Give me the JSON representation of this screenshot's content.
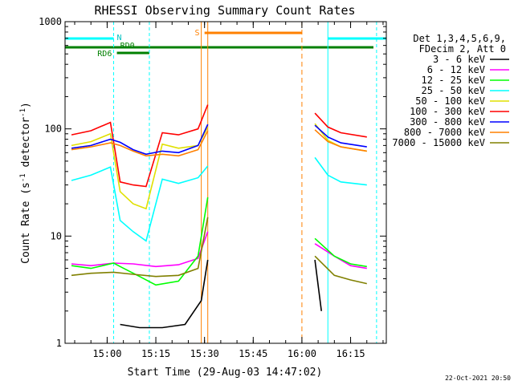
{
  "chart_data": {
    "type": "line",
    "title": "RHESSI Observing Summary Count Rates",
    "xlabel": "Start Time (29-Aug-03 14:47:02)",
    "ylabel": "Count Rate (s",
    "ylabel_sup": "-1",
    "ylabel_mid": " detector",
    "ylabel_end": ")",
    "yscale": "log",
    "ylim": [
      1,
      1000
    ],
    "xlim_minutes": [
      14.78,
      16.43
    ],
    "x_ticks": [
      "15:00",
      "15:15",
      "15:30",
      "15:45",
      "16:00",
      "16:15"
    ],
    "y_ticks": [
      "1",
      "10",
      "100",
      "1000"
    ],
    "legend_header": [
      "Det 1,3,4,5,6,9,",
      "FDecim 2, Att 0"
    ],
    "series": [
      {
        "name": "3 - 6 keV",
        "color": "#000000",
        "x": [
          "15:04",
          "15:10",
          "15:17",
          "15:24",
          "15:29",
          "15:31",
          "16:04",
          "16:06"
        ],
        "y": [
          1.5,
          1.4,
          1.4,
          1.5,
          2.5,
          6.0,
          6.0,
          2.0
        ]
      },
      {
        "name": "6 - 12 keV",
        "color": "#ff00ff",
        "x": [
          "14:49",
          "14:55",
          "15:02",
          "15:08",
          "15:15",
          "15:22",
          "15:28",
          "15:31",
          "16:04",
          "16:10",
          "16:15",
          "16:20"
        ],
        "y": [
          5.5,
          5.3,
          5.6,
          5.5,
          5.2,
          5.4,
          6.2,
          11.0,
          8.5,
          6.5,
          5.3,
          5.0
        ]
      },
      {
        "name": "12 - 25 keV",
        "color": "#00ff00",
        "x": [
          "14:49",
          "14:55",
          "15:02",
          "15:04",
          "15:10",
          "15:15",
          "15:22",
          "15:28",
          "15:31",
          "16:04",
          "16:10",
          "16:15",
          "16:20"
        ],
        "y": [
          5.3,
          5.0,
          5.6,
          5.2,
          4.2,
          3.5,
          3.8,
          6.5,
          23.0,
          9.5,
          6.5,
          5.5,
          5.2
        ]
      },
      {
        "name": "25 - 50 keV",
        "color": "#00ffff",
        "x": [
          "14:49",
          "14:55",
          "15:01",
          "15:04",
          "15:08",
          "15:12",
          "15:17",
          "15:22",
          "15:28",
          "15:31",
          "16:04",
          "16:08",
          "16:12",
          "16:20"
        ],
        "y": [
          33,
          37,
          44,
          14,
          11,
          9,
          34,
          31,
          35,
          45,
          54,
          37,
          32,
          30
        ]
      },
      {
        "name": "50 - 100 keV",
        "color": "#e0e000",
        "x": [
          "14:49",
          "14:55",
          "15:01",
          "15:04",
          "15:08",
          "15:12",
          "15:17",
          "15:22",
          "15:28",
          "15:31",
          "16:04",
          "16:08",
          "16:12",
          "16:20"
        ],
        "y": [
          70,
          76,
          90,
          26,
          20,
          18,
          72,
          66,
          70,
          104,
          112,
          78,
          68,
          62
        ]
      },
      {
        "name": "100 - 300 keV",
        "color": "#ff0000",
        "x": [
          "14:49",
          "14:55",
          "15:01",
          "15:04",
          "15:08",
          "15:12",
          "15:17",
          "15:22",
          "15:28",
          "15:31",
          "16:04",
          "16:08",
          "16:12",
          "16:20"
        ],
        "y": [
          88,
          96,
          115,
          32,
          30,
          29,
          92,
          88,
          100,
          168,
          140,
          104,
          92,
          84
        ]
      },
      {
        "name": "300 - 800 keV",
        "color": "#0000ff",
        "x": [
          "14:49",
          "14:55",
          "15:01",
          "15:04",
          "15:08",
          "15:12",
          "15:17",
          "15:22",
          "15:28",
          "15:31",
          "16:04",
          "16:08",
          "16:12",
          "16:20"
        ],
        "y": [
          66,
          70,
          80,
          75,
          64,
          58,
          62,
          60,
          70,
          110,
          108,
          84,
          74,
          68
        ]
      },
      {
        "name": "800 - 7000 keV",
        "color": "#ff8000",
        "x": [
          "14:49",
          "14:55",
          "15:01",
          "15:04",
          "15:08",
          "15:12",
          "15:17",
          "15:22",
          "15:28",
          "15:31",
          "16:04",
          "16:08",
          "16:12",
          "16:20"
        ],
        "y": [
          64,
          68,
          74,
          70,
          62,
          56,
          58,
          56,
          64,
          96,
          98,
          76,
          68,
          62
        ]
      },
      {
        "name": "7000 - 15000 keV",
        "color": "#808000",
        "x": [
          "14:49",
          "14:55",
          "15:02",
          "15:08",
          "15:15",
          "15:22",
          "15:28",
          "15:31",
          "16:04",
          "16:10",
          "16:15",
          "16:20"
        ],
        "y": [
          4.3,
          4.5,
          4.6,
          4.4,
          4.2,
          4.3,
          5.0,
          15.0,
          6.5,
          4.3,
          3.9,
          3.6
        ]
      }
    ],
    "annotations": {
      "N_label": "N",
      "S_label": "S",
      "RD6_label": "RD6",
      "RD0_label": "RD0",
      "date_stamp": "22-Oct-2021 20:50"
    }
  }
}
